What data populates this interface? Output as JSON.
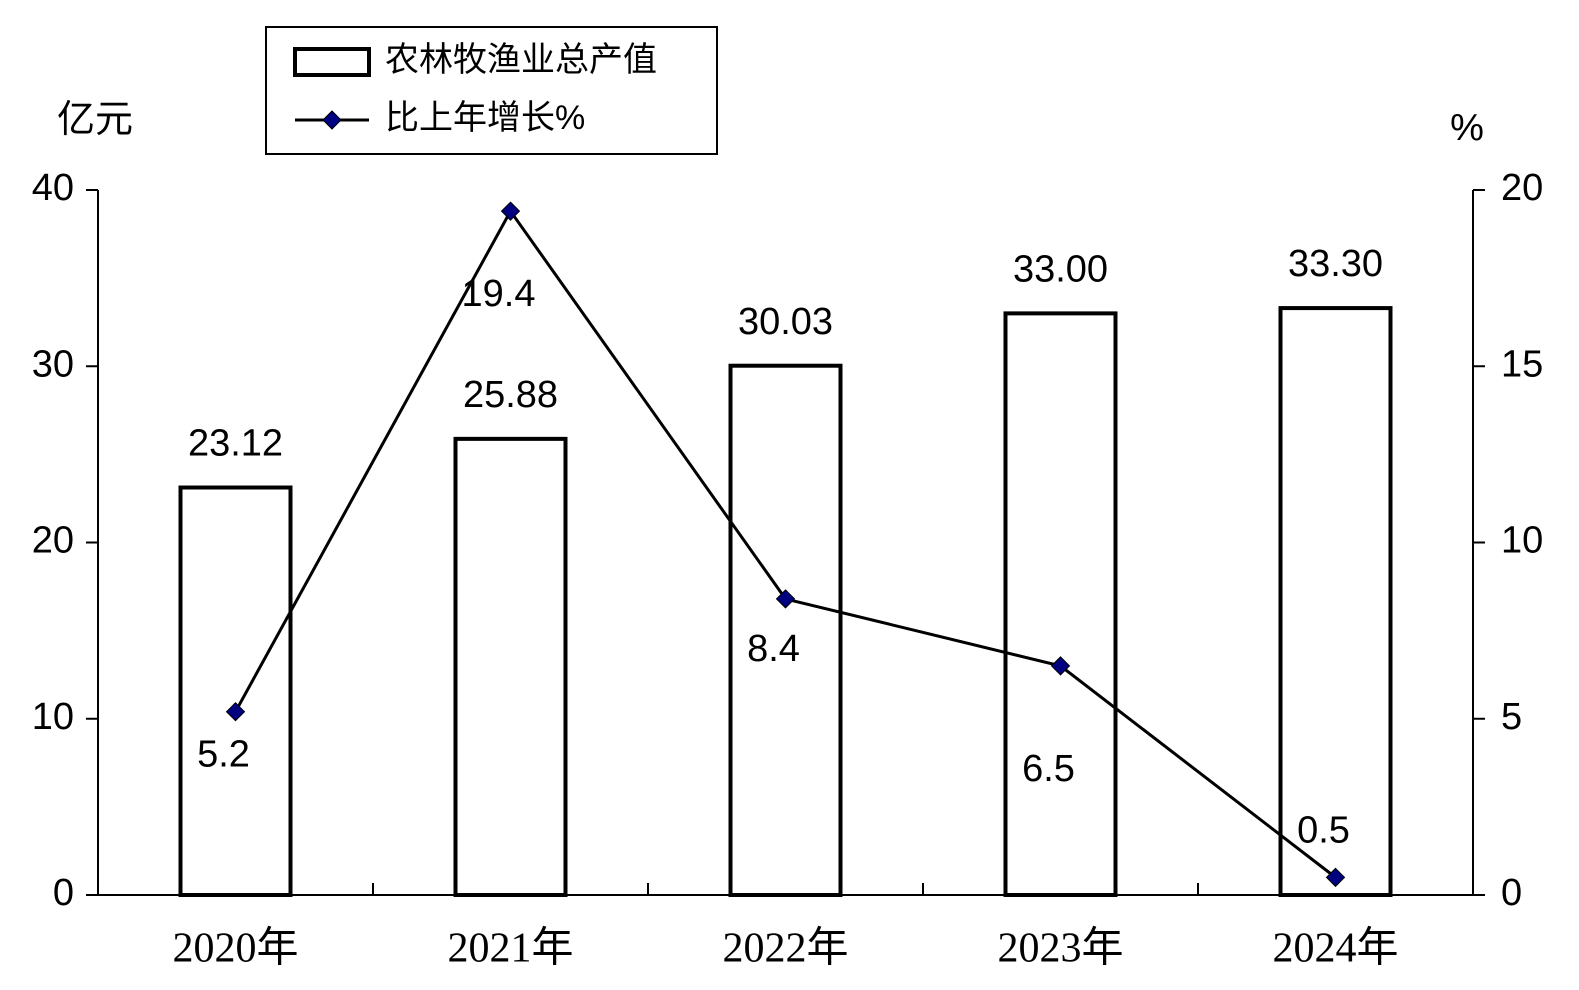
{
  "chart_data": {
    "type": "combo",
    "y_label": "亿元",
    "y2_label": "%",
    "categories": [
      "2020年",
      "2021年",
      "2022年",
      "2023年",
      "2024年"
    ],
    "series": [
      {
        "name": "农林牧渔业总产值",
        "type": "bar",
        "color": "#ffffff",
        "stroke": "#000000",
        "values": [
          23.12,
          25.88,
          30.03,
          33.0,
          33.3
        ],
        "value_labels": [
          "23.12",
          "25.88",
          "30.03",
          "33.00",
          "33.30"
        ]
      },
      {
        "name": "比上年增长%",
        "type": "line",
        "axis": "y2",
        "color": "#000000",
        "marker_color": "#000080",
        "values": [
          5.2,
          19.4,
          8.4,
          6.5,
          0.5
        ]
      }
    ],
    "ylim": [
      0,
      40
    ],
    "yticks": [
      0,
      10,
      20,
      30,
      40
    ],
    "y2lim": [
      0,
      20
    ],
    "y2ticks": [
      0,
      5,
      10,
      15,
      20
    ],
    "legend": "top-left"
  }
}
